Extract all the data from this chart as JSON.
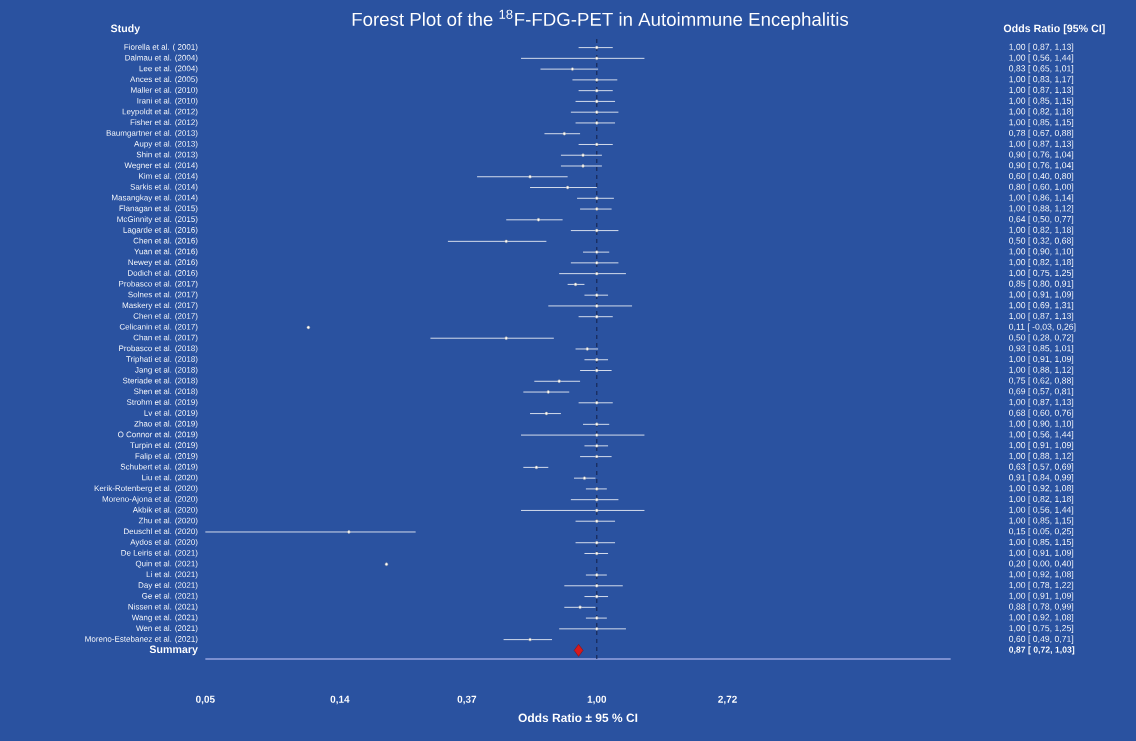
{
  "chart_data": {
    "type": "scatter",
    "orientation": "horizontal",
    "title": "Forest Plot of the $^{18}$F-FDG-PET in Autoimmune Encephalitis",
    "ylabel": "Study",
    "xlabel": "Odds Ratio ± 95 % CI",
    "annotations": [
      "Odds Ratio [95% CI]",
      "0,87 [ 0,72, 1,03]"
    ],
    "categories": [
      "Fiorella et al. ( 2001)",
      "Dalmau et al. (2004)",
      "Lee et al. (2004)",
      "Ances et al. (2005)",
      "Maller et al. (2010)",
      "Irani et al. (2010)",
      "Leypoldt et al. (2012)",
      "Fisher et al. (2012)",
      "Baumgartner et al. (2013)",
      "Aupy et al. (2013)",
      "Shin et al. (2013)",
      "Wegner et al. (2014)",
      "Kim et al. (2014)",
      "Sarkis et al. (2014)",
      "Masangkay et al. (2014)",
      "Flanagan et al. (2015)",
      "McGinnity et al. (2015)",
      "Lagarde et al. (2016)",
      "Chen et al. (2016)",
      "Yuan et al. (2016)",
      "Newey et al. (2016)",
      "Dodich et al. (2016)",
      "Probasco et al. (2017)",
      "Solnes et al. (2017)",
      "Maskery et al. (2017)",
      "Chen et al. (2017)",
      "Celicanin et al. (2017)",
      "Chan et al. (2017)",
      "Probasco et al. (2018)",
      "Triphati et al. (2018)",
      "Jang et al. (2018)",
      "Steriade et al. (2018)",
      "Shen et al. (2018)",
      "Strohm et al. (2019)",
      "Lv et al. (2019)",
      "Zhao et al. (2019)",
      "O Connor et al. (2019)",
      "Turpin et al. (2019)",
      "Falip et al. (2019)",
      "Schubert et al. (2019)",
      "Liu et al. (2020)",
      "Kerik-Rotenberg et al. (2020)",
      "Moreno-Ajona et al. (2020)",
      "Akbik et al. (2020)",
      "Zhu et al. (2020)",
      "Deuschl et al. (2020)",
      "Aydos et al. (2020)",
      "De Leiris et al. (2021)",
      "Quin et al. (2021)",
      "Li et al. (2021)",
      "Day et al. (2021)",
      "Ge et al. (2021)",
      "Nissen et al. (2021)",
      "Wang et al. (2021)",
      "Wen et al. (2021)",
      "Moreno-Estebanez et al. (2021)",
      "Summary"
    ],
    "series": [
      {
        "color": "#ffffff",
        "marker": "circle",
        "values": [
          1.0,
          1.0,
          0.83,
          1.0,
          1.0,
          1.0,
          1.0,
          1.0,
          0.78,
          1.0,
          0.9,
          0.9,
          0.6,
          0.8,
          1.0,
          1.0,
          0.64,
          1.0,
          0.5,
          1.0,
          1.0,
          1.0,
          0.85,
          1.0,
          1.0,
          1.0,
          0.11,
          0.5,
          0.93,
          1.0,
          1.0,
          0.75,
          0.69,
          1.0,
          0.68,
          1.0,
          1.0,
          1.0,
          1.0,
          0.63,
          0.91,
          1.0,
          1.0,
          1.0,
          1.0,
          0.15,
          1.0,
          1.0,
          0.2,
          1.0,
          1.0,
          1.0,
          0.88,
          1.0,
          1.0,
          0.6,
          null
        ],
        "errors": [
          [
            0.87,
            1.13
          ],
          [
            0.56,
            1.44
          ],
          [
            0.65,
            1.01
          ],
          [
            0.83,
            1.17
          ],
          [
            0.87,
            1.13
          ],
          [
            0.85,
            1.15
          ],
          [
            0.82,
            1.18
          ],
          [
            0.85,
            1.15
          ],
          [
            0.67,
            0.88
          ],
          [
            0.87,
            1.13
          ],
          [
            0.76,
            1.04
          ],
          [
            0.76,
            1.04
          ],
          [
            0.4,
            0.8
          ],
          [
            0.6,
            1.0
          ],
          [
            0.86,
            1.14
          ],
          [
            0.88,
            1.12
          ],
          [
            0.5,
            0.77
          ],
          [
            0.82,
            1.18
          ],
          [
            0.32,
            0.68
          ],
          [
            0.9,
            1.1
          ],
          [
            0.82,
            1.18
          ],
          [
            0.75,
            1.25
          ],
          [
            0.8,
            0.91
          ],
          [
            0.91,
            1.09
          ],
          [
            0.69,
            1.31
          ],
          [
            0.87,
            1.13
          ],
          null,
          [
            0.28,
            0.72
          ],
          [
            0.85,
            1.01
          ],
          [
            0.91,
            1.09
          ],
          [
            0.88,
            1.12
          ],
          [
            0.62,
            0.88
          ],
          [
            0.57,
            0.81
          ],
          [
            0.87,
            1.13
          ],
          [
            0.6,
            0.76
          ],
          [
            0.9,
            1.1
          ],
          [
            0.56,
            1.44
          ],
          [
            0.91,
            1.09
          ],
          [
            0.88,
            1.12
          ],
          [
            0.57,
            0.69
          ],
          [
            0.84,
            0.99
          ],
          [
            0.92,
            1.08
          ],
          [
            0.82,
            1.18
          ],
          [
            0.56,
            1.44
          ],
          [
            0.85,
            1.15
          ],
          [
            0.05,
            0.25
          ],
          [
            0.85,
            1.15
          ],
          [
            0.91,
            1.09
          ],
          null,
          [
            0.92,
            1.08
          ],
          [
            0.78,
            1.22
          ],
          [
            0.91,
            1.09
          ],
          [
            0.78,
            0.99
          ],
          [
            0.92,
            1.08
          ],
          [
            0.75,
            1.25
          ],
          [
            0.49,
            0.71
          ],
          null
        ],
        "value_labels": [
          "1,00 [ 0,87, 1,13]",
          "1,00 [ 0,56, 1,44]",
          "0,83 [ 0,65, 1,01]",
          "1,00 [ 0,83, 1,17]",
          "1,00 [ 0,87, 1,13]",
          "1,00 [ 0,85, 1,15]",
          "1,00 [ 0,82, 1,18]",
          "1,00 [ 0,85, 1,15]",
          "0,78 [ 0,67, 0,88]",
          "1,00 [ 0,87, 1,13]",
          "0,90 [ 0,76, 1,04]",
          "0,90 [ 0,76, 1,04]",
          "0,60 [ 0,40, 0,80]",
          "0,80 [ 0,60, 1,00]",
          "1,00 [ 0,86, 1,14]",
          "1,00 [ 0,88, 1,12]",
          "0,64 [ 0,50, 0,77]",
          "1,00 [ 0,82, 1,18]",
          "0,50 [ 0,32, 0,68]",
          "1,00 [ 0,90, 1,10]",
          "1,00 [ 0,82, 1,18]",
          "1,00 [ 0,75, 1,25]",
          "0,85 [ 0,80, 0,91]",
          "1,00 [ 0,91, 1,09]",
          "1,00 [ 0,69, 1,31]",
          "1,00 [ 0,87, 1,13]",
          "0,11 [ -0,03, 0,26]",
          "0,50 [ 0,28, 0,72]",
          "0,93 [ 0,85, 1,01]",
          "1,00 [ 0,91, 1,09]",
          "1,00 [ 0,88, 1,12]",
          "0,75 [ 0,62, 0,88]",
          "0,69 [ 0,57, 0,81]",
          "1,00 [ 0,87, 1,13]",
          "0,68 [ 0,60, 0,76]",
          "1,00 [ 0,90, 1,10]",
          "1,00 [ 0,56, 1,44]",
          "1,00 [ 0,91, 1,09]",
          "1,00 [ 0,88, 1,12]",
          "0,63 [ 0,57, 0,69]",
          "0,91 [ 0,84, 0,99]",
          "1,00 [ 0,92, 1,08]",
          "1,00 [ 0,82, 1,18]",
          "1,00 [ 0,56, 1,44]",
          "1,00 [ 0,85, 1,15]",
          "0,15 [ 0,05, 0,25]",
          "1,00 [ 0,85, 1,15]",
          "1,00 [ 0,91, 1,09]",
          "0,20 [ 0,00, 0,40]",
          "1,00 [ 0,92, 1,08]",
          "1,00 [ 0,78, 1,22]",
          "1,00 [ 0,91, 1,09]",
          "0,88 [ 0,78, 0,99]",
          "1,00 [ 0,92, 1,08]",
          "1,00 [ 0,75, 1,25]",
          "0,60 [ 0,49, 0,71]",
          null
        ]
      },
      {
        "color": "#d7191c",
        "marker": "diamond",
        "values": [
          null,
          null,
          null,
          null,
          null,
          null,
          null,
          null,
          null,
          null,
          null,
          null,
          null,
          null,
          null,
          null,
          null,
          null,
          null,
          null,
          null,
          null,
          null,
          null,
          null,
          null,
          null,
          null,
          null,
          null,
          null,
          null,
          null,
          null,
          null,
          null,
          null,
          null,
          null,
          null,
          null,
          null,
          null,
          null,
          null,
          null,
          null,
          null,
          null,
          null,
          null,
          null,
          null,
          null,
          null,
          null,
          0.87
        ]
      }
    ],
    "log": "x",
    "xlim": [
      0.05,
      15
    ],
    "xticks": [
      {
        "value": 0.05,
        "label": "0,05"
      },
      {
        "value": 0.14,
        "label": "0,14"
      },
      {
        "value": 0.37,
        "label": "0,37"
      },
      {
        "value": 1,
        "label": "1,00"
      },
      {
        "value": 2.72,
        "label": "2,72"
      }
    ],
    "ref_lines": [
      {
        "axis": "x",
        "value": 1,
        "color": "#16244f",
        "line_style": "dashed"
      }
    ]
  }
}
